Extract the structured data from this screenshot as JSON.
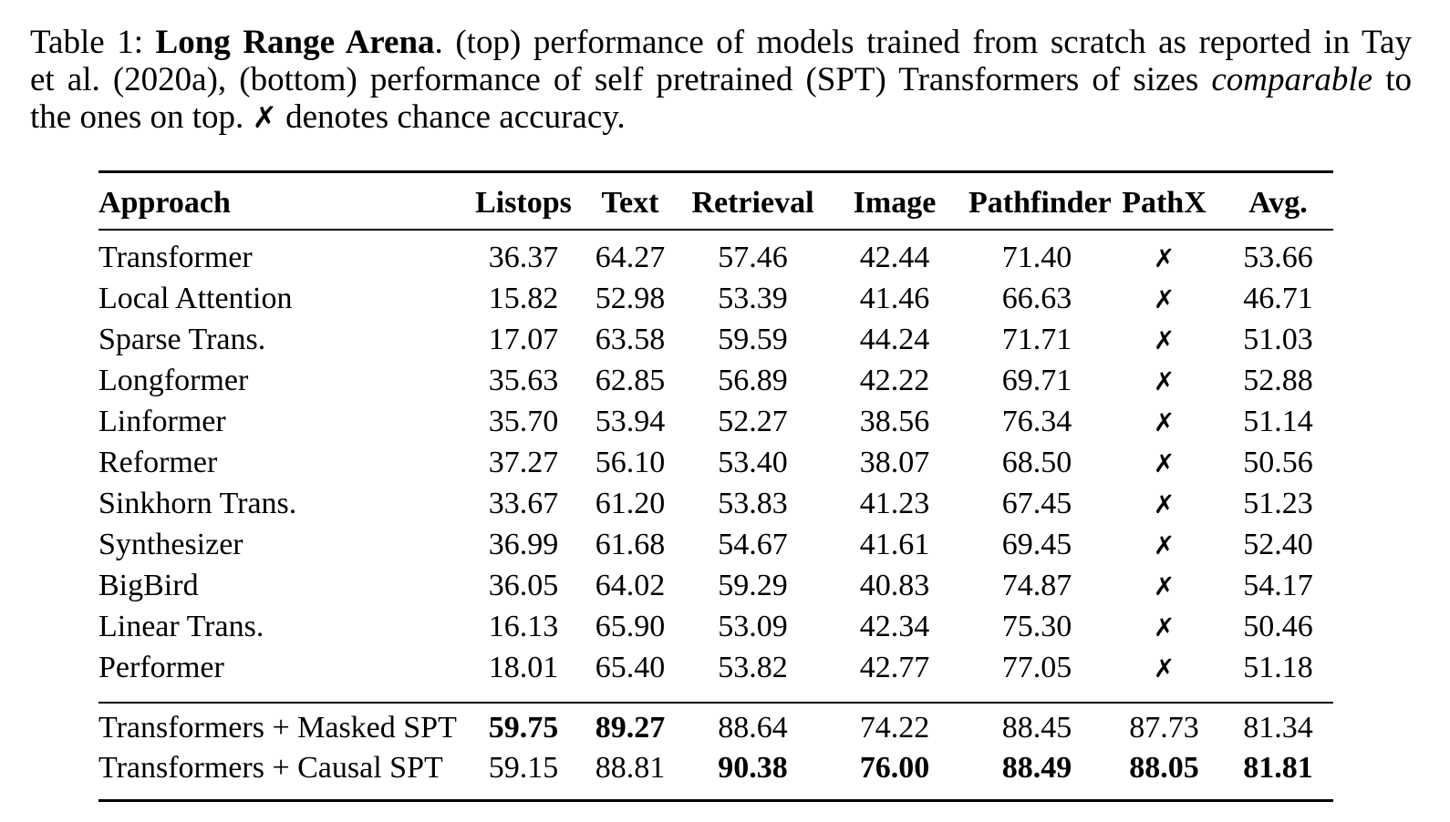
{
  "caption": {
    "line1": {
      "pre": "Table 1: ",
      "bold": "Long Range Arena",
      "post": ". (top) performance of models trained from scratch as reported in Tay"
    },
    "line2": {
      "pre": "et al. (2020a), (bottom) performance of self pretrained (SPT) Transformers of sizes ",
      "italic": "comparable",
      "post": " to"
    },
    "line3": {
      "pre": "the ones on top. ",
      "cross": "✗",
      "post": " denotes chance accuracy."
    }
  },
  "table": {
    "chance_symbol": "✗",
    "columns": [
      "Approach",
      "Listops",
      "Text",
      "Retrieval",
      "Image",
      "Pathfinder",
      "PathX",
      "Avg."
    ],
    "sections": [
      {
        "name": "trained-from-scratch",
        "rows": [
          {
            "approach": "Transformer",
            "values": [
              "36.37",
              "64.27",
              "57.46",
              "42.44",
              "71.40",
              "✗",
              "53.66"
            ]
          },
          {
            "approach": "Local Attention",
            "values": [
              "15.82",
              "52.98",
              "53.39",
              "41.46",
              "66.63",
              "✗",
              "46.71"
            ]
          },
          {
            "approach": "Sparse Trans.",
            "values": [
              "17.07",
              "63.58",
              "59.59",
              "44.24",
              "71.71",
              "✗",
              "51.03"
            ]
          },
          {
            "approach": "Longformer",
            "values": [
              "35.63",
              "62.85",
              "56.89",
              "42.22",
              "69.71",
              "✗",
              "52.88"
            ]
          },
          {
            "approach": "Linformer",
            "values": [
              "35.70",
              "53.94",
              "52.27",
              "38.56",
              "76.34",
              "✗",
              "51.14"
            ]
          },
          {
            "approach": "Reformer",
            "values": [
              "37.27",
              "56.10",
              "53.40",
              "38.07",
              "68.50",
              "✗",
              "50.56"
            ]
          },
          {
            "approach": "Sinkhorn Trans.",
            "values": [
              "33.67",
              "61.20",
              "53.83",
              "41.23",
              "67.45",
              "✗",
              "51.23"
            ]
          },
          {
            "approach": "Synthesizer",
            "values": [
              "36.99",
              "61.68",
              "54.67",
              "41.61",
              "69.45",
              "✗",
              "52.40"
            ]
          },
          {
            "approach": "BigBird",
            "values": [
              "36.05",
              "64.02",
              "59.29",
              "40.83",
              "74.87",
              "✗",
              "54.17"
            ]
          },
          {
            "approach": "Linear Trans.",
            "values": [
              "16.13",
              "65.90",
              "53.09",
              "42.34",
              "75.30",
              "✗",
              "50.46"
            ]
          },
          {
            "approach": "Performer",
            "values": [
              "18.01",
              "65.40",
              "53.82",
              "42.77",
              "77.05",
              "✗",
              "51.18"
            ]
          }
        ]
      },
      {
        "name": "self-pretrained",
        "rows": [
          {
            "approach": "Transformers + Masked SPT",
            "values": [
              "59.75",
              "89.27",
              "88.64",
              "74.22",
              "88.45",
              "87.73",
              "81.34"
            ],
            "bold": [
              true,
              true,
              false,
              false,
              false,
              false,
              false
            ]
          },
          {
            "approach": "Transformers + Causal SPT",
            "values": [
              "59.15",
              "88.81",
              "90.38",
              "76.00",
              "88.49",
              "88.05",
              "81.81"
            ],
            "bold": [
              false,
              false,
              true,
              true,
              true,
              true,
              true
            ]
          }
        ]
      }
    ]
  }
}
